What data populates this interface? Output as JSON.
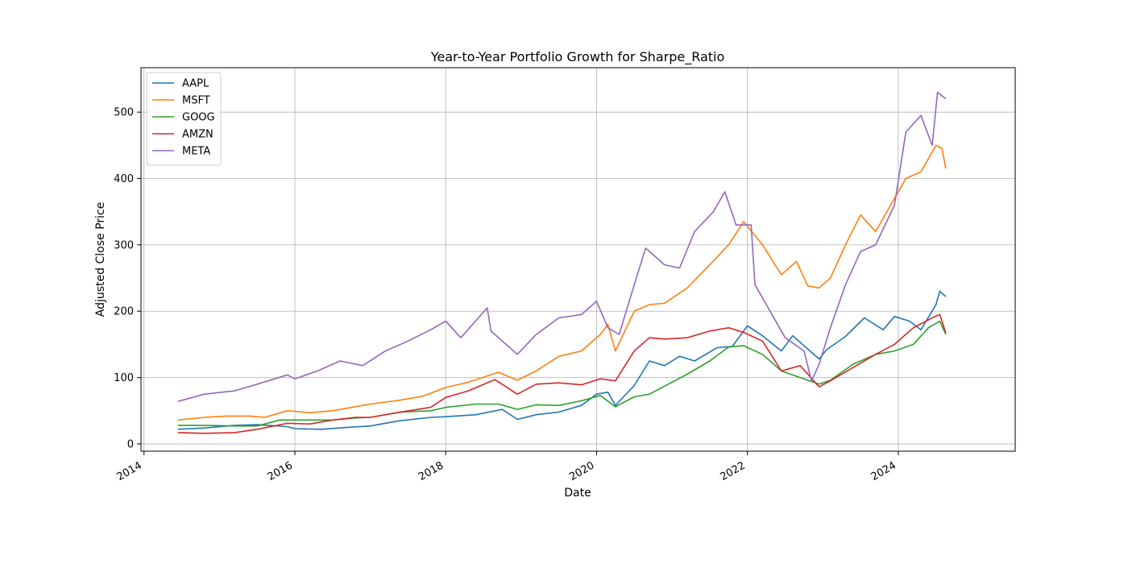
{
  "chart_data": {
    "type": "line",
    "title": "Year-to-Year Portfolio Growth for Sharpe_Ratio",
    "xlabel": "Date",
    "ylabel": "Adjusted Close Price",
    "xlim": [
      2013.96,
      2025.55
    ],
    "ylim": [
      -11,
      567
    ],
    "x_ticks": [
      {
        "value": 2014,
        "label": "2014"
      },
      {
        "value": 2016,
        "label": "2016"
      },
      {
        "value": 2018,
        "label": "2018"
      },
      {
        "value": 2020,
        "label": "2020"
      },
      {
        "value": 2022,
        "label": "2022"
      },
      {
        "value": 2024,
        "label": "2024"
      }
    ],
    "y_ticks": [
      {
        "value": 0,
        "label": "0"
      },
      {
        "value": 100,
        "label": "100"
      },
      {
        "value": 200,
        "label": "200"
      },
      {
        "value": 300,
        "label": "300"
      },
      {
        "value": 400,
        "label": "400"
      },
      {
        "value": 500,
        "label": "500"
      }
    ],
    "grid": true,
    "legend_position": "upper-left",
    "series": [
      {
        "name": "AAPL",
        "color": "#1f77b4",
        "points": [
          [
            2014.45,
            22
          ],
          [
            2014.8,
            24
          ],
          [
            2015.2,
            28
          ],
          [
            2015.5,
            29
          ],
          [
            2015.9,
            26
          ],
          [
            2016.0,
            23
          ],
          [
            2016.35,
            22
          ],
          [
            2016.7,
            25
          ],
          [
            2017.0,
            27
          ],
          [
            2017.4,
            35
          ],
          [
            2017.8,
            40
          ],
          [
            2018.0,
            41
          ],
          [
            2018.4,
            44
          ],
          [
            2018.75,
            52
          ],
          [
            2018.95,
            37
          ],
          [
            2019.2,
            44
          ],
          [
            2019.5,
            48
          ],
          [
            2019.8,
            58
          ],
          [
            2020.0,
            75
          ],
          [
            2020.15,
            78
          ],
          [
            2020.25,
            58
          ],
          [
            2020.5,
            88
          ],
          [
            2020.7,
            125
          ],
          [
            2020.9,
            118
          ],
          [
            2021.1,
            132
          ],
          [
            2021.3,
            125
          ],
          [
            2021.6,
            145
          ],
          [
            2021.8,
            147
          ],
          [
            2022.0,
            178
          ],
          [
            2022.2,
            163
          ],
          [
            2022.45,
            140
          ],
          [
            2022.6,
            163
          ],
          [
            2022.75,
            148
          ],
          [
            2022.95,
            128
          ],
          [
            2023.05,
            142
          ],
          [
            2023.3,
            162
          ],
          [
            2023.55,
            190
          ],
          [
            2023.8,
            172
          ],
          [
            2023.95,
            192
          ],
          [
            2024.15,
            185
          ],
          [
            2024.3,
            172
          ],
          [
            2024.5,
            210
          ],
          [
            2024.55,
            230
          ],
          [
            2024.63,
            222
          ]
        ]
      },
      {
        "name": "MSFT",
        "color": "#ff7f0e",
        "points": [
          [
            2014.45,
            36
          ],
          [
            2014.8,
            40
          ],
          [
            2015.1,
            42
          ],
          [
            2015.4,
            42
          ],
          [
            2015.6,
            40
          ],
          [
            2015.9,
            50
          ],
          [
            2016.2,
            47
          ],
          [
            2016.5,
            50
          ],
          [
            2016.8,
            56
          ],
          [
            2017.0,
            60
          ],
          [
            2017.4,
            66
          ],
          [
            2017.7,
            72
          ],
          [
            2018.0,
            85
          ],
          [
            2018.3,
            93
          ],
          [
            2018.7,
            108
          ],
          [
            2018.95,
            96
          ],
          [
            2019.2,
            110
          ],
          [
            2019.5,
            132
          ],
          [
            2019.8,
            140
          ],
          [
            2020.05,
            165
          ],
          [
            2020.15,
            180
          ],
          [
            2020.25,
            140
          ],
          [
            2020.5,
            200
          ],
          [
            2020.7,
            210
          ],
          [
            2020.9,
            212
          ],
          [
            2021.2,
            235
          ],
          [
            2021.5,
            270
          ],
          [
            2021.75,
            300
          ],
          [
            2021.95,
            335
          ],
          [
            2022.2,
            300
          ],
          [
            2022.45,
            255
          ],
          [
            2022.65,
            275
          ],
          [
            2022.8,
            238
          ],
          [
            2022.95,
            235
          ],
          [
            2023.1,
            250
          ],
          [
            2023.3,
            300
          ],
          [
            2023.5,
            345
          ],
          [
            2023.7,
            320
          ],
          [
            2023.95,
            370
          ],
          [
            2024.1,
            400
          ],
          [
            2024.3,
            410
          ],
          [
            2024.5,
            450
          ],
          [
            2024.58,
            445
          ],
          [
            2024.63,
            415
          ]
        ]
      },
      {
        "name": "GOOG",
        "color": "#2ca02c",
        "points": [
          [
            2014.45,
            28
          ],
          [
            2014.8,
            28
          ],
          [
            2015.2,
            27
          ],
          [
            2015.5,
            27
          ],
          [
            2015.8,
            36
          ],
          [
            2016.2,
            36
          ],
          [
            2016.5,
            36
          ],
          [
            2016.8,
            39
          ],
          [
            2017.0,
            40
          ],
          [
            2017.4,
            48
          ],
          [
            2017.8,
            50
          ],
          [
            2018.0,
            55
          ],
          [
            2018.4,
            60
          ],
          [
            2018.7,
            60
          ],
          [
            2018.95,
            52
          ],
          [
            2019.2,
            59
          ],
          [
            2019.5,
            58
          ],
          [
            2019.8,
            65
          ],
          [
            2020.05,
            73
          ],
          [
            2020.25,
            56
          ],
          [
            2020.5,
            71
          ],
          [
            2020.7,
            75
          ],
          [
            2020.9,
            87
          ],
          [
            2021.2,
            105
          ],
          [
            2021.5,
            125
          ],
          [
            2021.75,
            146
          ],
          [
            2021.95,
            148
          ],
          [
            2022.2,
            135
          ],
          [
            2022.45,
            110
          ],
          [
            2022.7,
            100
          ],
          [
            2022.95,
            90
          ],
          [
            2023.1,
            96
          ],
          [
            2023.4,
            120
          ],
          [
            2023.7,
            135
          ],
          [
            2023.95,
            140
          ],
          [
            2024.2,
            150
          ],
          [
            2024.4,
            175
          ],
          [
            2024.55,
            185
          ],
          [
            2024.63,
            165
          ]
        ]
      },
      {
        "name": "AMZN",
        "color": "#d62728",
        "points": [
          [
            2014.45,
            17
          ],
          [
            2014.8,
            16
          ],
          [
            2015.2,
            17
          ],
          [
            2015.5,
            22
          ],
          [
            2015.9,
            31
          ],
          [
            2016.2,
            30
          ],
          [
            2016.5,
            36
          ],
          [
            2016.8,
            40
          ],
          [
            2017.0,
            40
          ],
          [
            2017.4,
            48
          ],
          [
            2017.8,
            55
          ],
          [
            2018.0,
            70
          ],
          [
            2018.3,
            80
          ],
          [
            2018.65,
            97
          ],
          [
            2018.95,
            75
          ],
          [
            2019.2,
            90
          ],
          [
            2019.5,
            92
          ],
          [
            2019.8,
            89
          ],
          [
            2020.05,
            98
          ],
          [
            2020.25,
            95
          ],
          [
            2020.5,
            140
          ],
          [
            2020.7,
            160
          ],
          [
            2020.9,
            158
          ],
          [
            2021.2,
            160
          ],
          [
            2021.5,
            170
          ],
          [
            2021.75,
            175
          ],
          [
            2021.95,
            168
          ],
          [
            2022.2,
            155
          ],
          [
            2022.45,
            110
          ],
          [
            2022.7,
            118
          ],
          [
            2022.95,
            86
          ],
          [
            2023.1,
            95
          ],
          [
            2023.4,
            115
          ],
          [
            2023.7,
            135
          ],
          [
            2023.95,
            150
          ],
          [
            2024.2,
            175
          ],
          [
            2024.45,
            190
          ],
          [
            2024.55,
            195
          ],
          [
            2024.63,
            167
          ]
        ]
      },
      {
        "name": "META",
        "color": "#9467bd",
        "points": [
          [
            2014.45,
            64
          ],
          [
            2014.8,
            75
          ],
          [
            2015.2,
            80
          ],
          [
            2015.5,
            90
          ],
          [
            2015.9,
            104
          ],
          [
            2016.0,
            98
          ],
          [
            2016.3,
            110
          ],
          [
            2016.6,
            125
          ],
          [
            2016.9,
            118
          ],
          [
            2017.2,
            140
          ],
          [
            2017.5,
            155
          ],
          [
            2017.8,
            172
          ],
          [
            2018.0,
            185
          ],
          [
            2018.2,
            160
          ],
          [
            2018.55,
            205
          ],
          [
            2018.6,
            170
          ],
          [
            2018.95,
            135
          ],
          [
            2019.2,
            165
          ],
          [
            2019.5,
            190
          ],
          [
            2019.8,
            195
          ],
          [
            2020.0,
            215
          ],
          [
            2020.15,
            175
          ],
          [
            2020.3,
            165
          ],
          [
            2020.5,
            240
          ],
          [
            2020.65,
            295
          ],
          [
            2020.9,
            270
          ],
          [
            2021.1,
            265
          ],
          [
            2021.3,
            320
          ],
          [
            2021.55,
            350
          ],
          [
            2021.7,
            380
          ],
          [
            2021.85,
            330
          ],
          [
            2022.05,
            330
          ],
          [
            2022.1,
            240
          ],
          [
            2022.3,
            200
          ],
          [
            2022.5,
            160
          ],
          [
            2022.75,
            140
          ],
          [
            2022.85,
            95
          ],
          [
            2022.95,
            120
          ],
          [
            2023.1,
            175
          ],
          [
            2023.3,
            240
          ],
          [
            2023.5,
            290
          ],
          [
            2023.7,
            300
          ],
          [
            2023.95,
            360
          ],
          [
            2024.1,
            470
          ],
          [
            2024.3,
            495
          ],
          [
            2024.45,
            450
          ],
          [
            2024.52,
            530
          ],
          [
            2024.63,
            520
          ]
        ]
      }
    ]
  }
}
